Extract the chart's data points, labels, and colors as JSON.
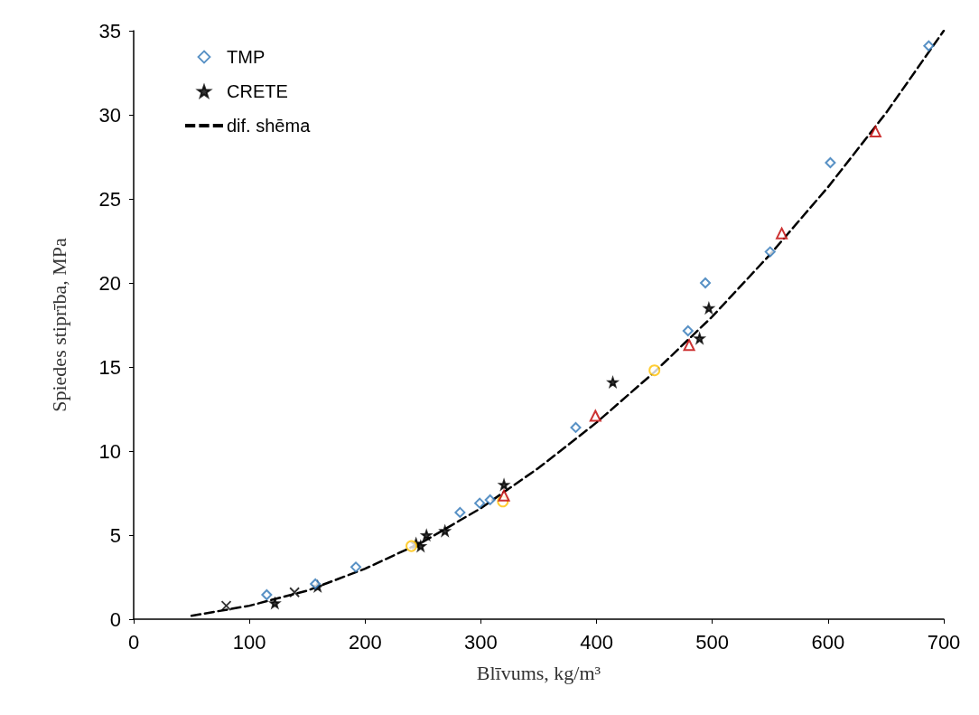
{
  "chart_data": {
    "type": "scatter",
    "xlabel": "Blīvums, kg/m³",
    "ylabel": "Spiedes stiprība, MPa",
    "xlim": [
      0,
      700
    ],
    "xticks": [
      0,
      100,
      200,
      300,
      400,
      500,
      600,
      700
    ],
    "ylim": [
      0,
      35
    ],
    "yticks": [
      0,
      5,
      10,
      15,
      20,
      25,
      30,
      35
    ],
    "grid": false,
    "legend": "top left",
    "series": [
      {
        "name": "TMP",
        "color": "#2e75b6",
        "marker": "diamond",
        "x": [
          115,
          157,
          192,
          282,
          299,
          308,
          382,
          479,
          494,
          550,
          602,
          687
        ],
        "values": [
          1.45,
          2.1,
          3.1,
          6.35,
          6.9,
          7.1,
          11.4,
          17.15,
          20.0,
          21.85,
          27.15,
          34.1
        ]
      },
      {
        "color": "#c00000",
        "marker": "triangle",
        "x": [
          320,
          399,
          480,
          560,
          641
        ],
        "values": [
          7.35,
          12.1,
          16.3,
          22.95,
          29.0
        ]
      },
      {
        "color": "#ffc000",
        "marker": "circle",
        "x": [
          240,
          319,
          450
        ],
        "values": [
          4.35,
          7.0,
          14.8
        ]
      },
      {
        "color": "#000000",
        "marker": "cross",
        "x": [
          80,
          139
        ],
        "values": [
          0.8,
          1.6
        ]
      },
      {
        "name": "CRETE",
        "color": "#000000",
        "marker": "star",
        "x": [
          122,
          159,
          244,
          248,
          253,
          269,
          320,
          414,
          489,
          497
        ],
        "values": [
          0.95,
          1.95,
          4.5,
          4.35,
          5.0,
          5.25,
          8.0,
          14.1,
          16.7,
          18.5
        ]
      },
      {
        "name": "dif. shēma",
        "type": "line",
        "color": "#000000",
        "marker": "none",
        "line_style": "dashed",
        "x": [
          50,
          100,
          150,
          200,
          250,
          300,
          350,
          400,
          450,
          500,
          550,
          600,
          650,
          700
        ],
        "values": [
          0.2,
          0.8,
          1.7,
          3.0,
          4.6,
          6.6,
          9.0,
          11.7,
          14.7,
          18.0,
          21.7,
          25.7,
          30.1,
          35
        ]
      }
    ]
  }
}
